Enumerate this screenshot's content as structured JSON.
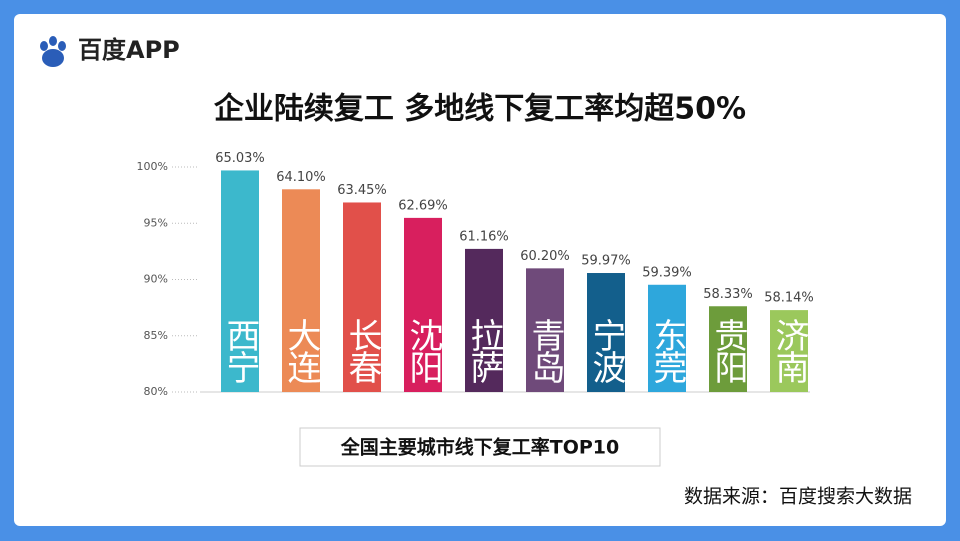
{
  "brand": "百度APP",
  "chart_data": {
    "type": "bar",
    "title": "企业陆续复工  多地线下复工率均超50%",
    "subtitle": "全国主要城市线下复工率TOP10",
    "source": "数据来源：百度搜索大数据",
    "categories": [
      "西宁",
      "大连",
      "长春",
      "沈阳",
      "拉萨",
      "青岛",
      "宁波",
      "东莞",
      "贵阳",
      "济南"
    ],
    "series": [
      {
        "axis": "y2",
        "values": [
          65.03,
          64.1,
          63.45,
          62.69,
          61.16,
          60.2,
          59.97,
          59.39,
          58.33,
          58.14
        ],
        "value_labels": [
          "65.03%",
          "64.10%",
          "63.45%",
          "62.69%",
          "61.16%",
          "60.20%",
          "59.97%",
          "59.39%",
          "58.33%",
          "58.14%"
        ],
        "colors": [
          "#3cb8cc",
          "#ec8a56",
          "#e1504a",
          "#d81f5e",
          "#54295c",
          "#6f4a7a",
          "#135f8c",
          "#2ea7dc",
          "#6d9c3b",
          "#9bc85c"
        ]
      }
    ],
    "ylim": [
      80,
      100
    ],
    "yticks": [
      {
        "value": 80,
        "label": "80%"
      },
      {
        "value": 85,
        "label": "85%"
      },
      {
        "value": 90,
        "label": "90%"
      },
      {
        "value": 95,
        "label": "95%"
      },
      {
        "value": 100,
        "label": "100%"
      }
    ],
    "y2lim": [
      54.1,
      65.2
    ],
    "grid": true
  }
}
